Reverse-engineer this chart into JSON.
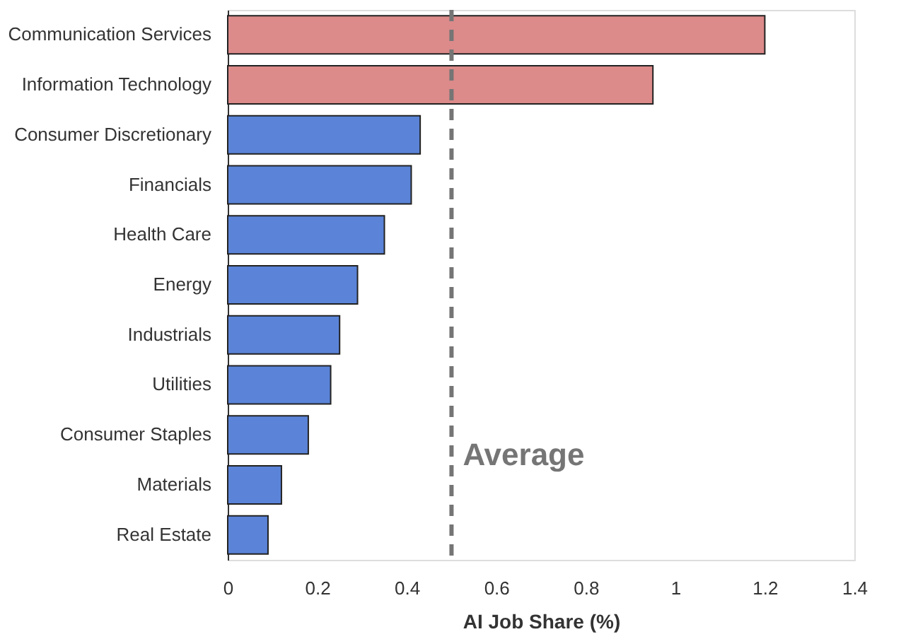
{
  "chart_data": {
    "type": "bar",
    "orientation": "horizontal",
    "categories": [
      "Communication Services",
      "Information Technology",
      "Consumer Discretionary",
      "Financials",
      "Health Care",
      "Energy",
      "Industrials",
      "Utilities",
      "Consumer Staples",
      "Materials",
      "Real Estate"
    ],
    "values": [
      1.2,
      0.95,
      0.43,
      0.41,
      0.35,
      0.29,
      0.25,
      0.23,
      0.18,
      0.12,
      0.09
    ],
    "colors": [
      "#dc8a8a",
      "#dc8a8a",
      "#5b84d8",
      "#5b84d8",
      "#5b84d8",
      "#5b84d8",
      "#5b84d8",
      "#5b84d8",
      "#5b84d8",
      "#5b84d8",
      "#5b84d8"
    ],
    "xlabel": "AI Job Share (%)",
    "xlim": [
      0,
      1.4
    ],
    "xticks": [
      0,
      0.2,
      0.4,
      0.6,
      0.8,
      1,
      1.2,
      1.4
    ],
    "ref_lines": [
      {
        "axis": "x",
        "value": 0.5,
        "label": "Average",
        "color": "#757575",
        "line_style": "dashed"
      }
    ],
    "grid": false
  }
}
